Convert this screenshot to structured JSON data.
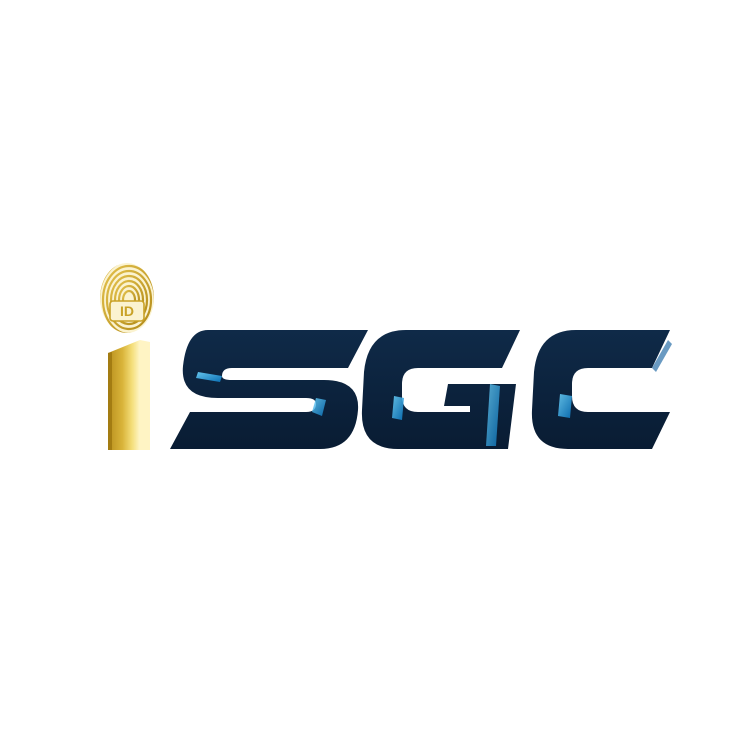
{
  "logo": {
    "wordmark": "iSGC",
    "fingerprint_badge": "ID",
    "colors": {
      "navy": "#0c2340",
      "navy_dark": "#081a30",
      "highlight_blue": "#1ea7e1",
      "gold": "#c9a227",
      "gold_light": "#f1d66a",
      "background": "#ffffff"
    },
    "icons": [
      "fingerprint-icon"
    ]
  }
}
